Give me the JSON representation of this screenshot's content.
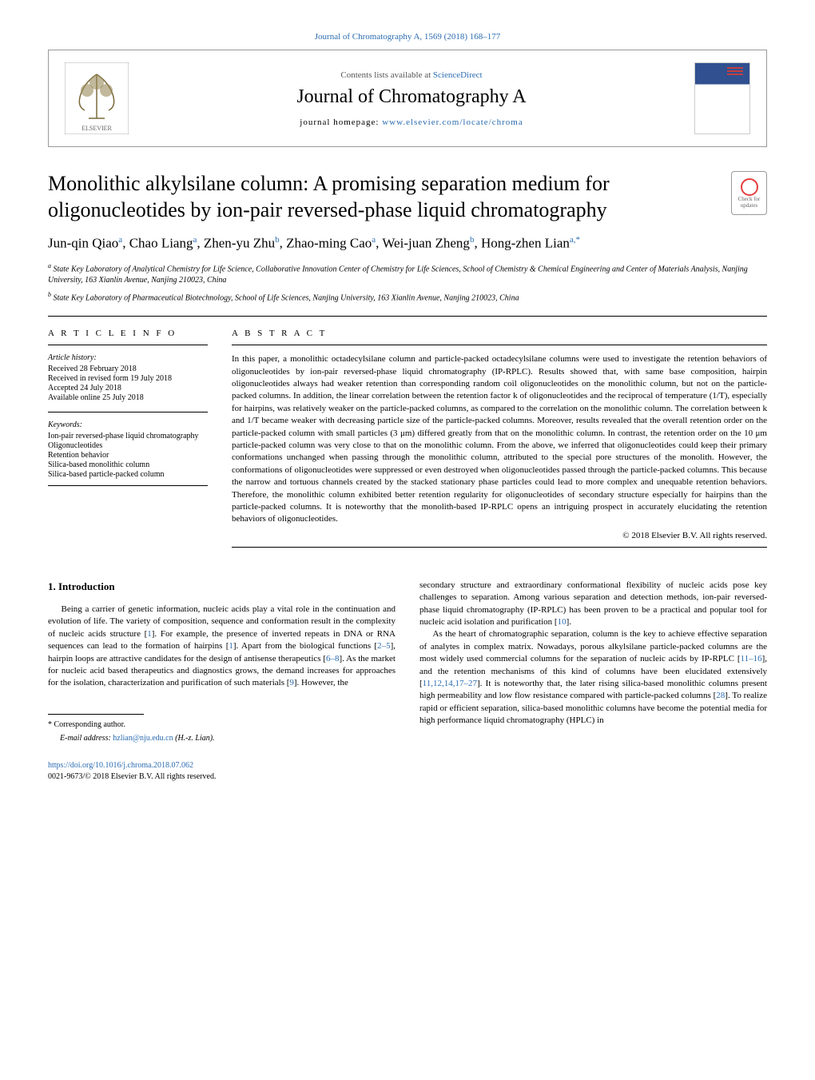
{
  "journal_ref": "Journal of Chromatography A, 1569 (2018) 168–177",
  "header": {
    "contents_prefix": "Contents lists available at ",
    "contents_link": "ScienceDirect",
    "journal_name": "Journal of Chromatography A",
    "homepage_label": "journal homepage: ",
    "homepage_url": "www.elsevier.com/locate/chroma"
  },
  "title": "Monolithic alkylsilane column: A promising separation medium for oligonucleotides by ion-pair reversed-phase liquid chromatography",
  "crossmark_text": "Check for updates",
  "authors_html": "Jun-qin Qiao<sup>a</sup>, Chao Liang<sup>a</sup>, Zhen-yu Zhu<sup>b</sup>, Zhao-ming Cao<sup>a</sup>, Wei-juan Zheng<sup>b</sup>, Hong-zhen Lian<sup>a,*</sup>",
  "affiliations": [
    {
      "sup": "a",
      "text": "State Key Laboratory of Analytical Chemistry for Life Science, Collaborative Innovation Center of Chemistry for Life Sciences, School of Chemistry & Chemical Engineering and Center of Materials Analysis, Nanjing University, 163 Xianlin Avenue, Nanjing 210023, China"
    },
    {
      "sup": "b",
      "text": "State Key Laboratory of Pharmaceutical Biotechnology, School of Life Sciences, Nanjing University, 163 Xianlin Avenue, Nanjing 210023, China"
    }
  ],
  "article_info": {
    "heading": "A R T I C L E   I N F O",
    "history_label": "Article history:",
    "history": [
      "Received 28 February 2018",
      "Received in revised form 19 July 2018",
      "Accepted 24 July 2018",
      "Available online 25 July 2018"
    ],
    "keywords_label": "Keywords:",
    "keywords": [
      "Ion-pair reversed-phase liquid chromatography",
      "Oligonucleotides",
      "Retention behavior",
      "Silica-based monolithic column",
      "Silica-based particle-packed column"
    ]
  },
  "abstract": {
    "heading": "A B S T R A C T",
    "text": "In this paper, a monolithic octadecylsilane column and particle-packed octadecylsilane columns were used to investigate the retention behaviors of oligonucleotides by ion-pair reversed-phase liquid chromatography (IP-RPLC). Results showed that, with same base composition, hairpin oligonucleotides always had weaker retention than corresponding random coil oligonucleotides on the monolithic column, but not on the particle-packed columns. In addition, the linear correlation between the retention factor k of oligonucleotides and the reciprocal of temperature (1/T), especially for hairpins, was relatively weaker on the particle-packed columns, as compared to the correlation on the monolithic column. The correlation between k and 1/T became weaker with decreasing particle size of the particle-packed columns. Moreover, results revealed that the overall retention order on the particle-packed column with small particles (3 μm) differed greatly from that on the monolithic column. In contrast, the retention order on the 10 μm particle-packed column was very close to that on the monolithic column. From the above, we inferred that oligonucleotides could keep their primary conformations unchanged when passing through the monolithic column, attributed to the special pore structures of the monolith. However, the conformations of oligonucleotides were suppressed or even destroyed when oligonucleotides passed through the particle-packed columns. This because the narrow and tortuous channels created by the stacked stationary phase particles could lead to more complex and unequable retention behaviors. Therefore, the monolithic column exhibited better retention regularity for oligonucleotides of secondary structure especially for hairpins than the particle-packed columns. It is noteworthy that the monolith-based IP-RPLC opens an intriguing prospect in accurately elucidating the retention behaviors of oligonucleotides.",
    "copyright": "© 2018 Elsevier B.V. All rights reserved."
  },
  "intro": {
    "heading": "1. Introduction",
    "col1_p1": "Being a carrier of genetic information, nucleic acids play a vital role in the continuation and evolution of life. The variety of composition, sequence and conformation result in the complexity of nucleic acids structure [1]. For example, the presence of inverted repeats in DNA or RNA sequences can lead to the formation of hairpins [1]. Apart from the biological functions [2–5], hairpin loops are attractive candidates for the design of antisense therapeutics [6–8]. As the market for nucleic acid based therapeutics and diagnostics grows, the demand increases for approaches for the isolation, characterization and purification of such materials [9]. However, the",
    "col2_p1": "secondary structure and extraordinary conformational flexibility of nucleic acids pose key challenges to separation. Among various separation and detection methods, ion-pair reversed-phase liquid chromatography (IP-RPLC) has been proven to be a practical and popular tool for nucleic acid isolation and purification [10].",
    "col2_p2": "As the heart of chromatographic separation, column is the key to achieve effective separation of analytes in complex matrix. Nowadays, porous alkylsilane particle-packed columns are the most widely used commercial columns for the separation of nucleic acids by IP-RPLC [11–16], and the retention mechanisms of this kind of columns have been elucidated extensively [11,12,14,17–27]. It is noteworthy that, the later rising silica-based monolithic columns present high permeability and low flow resistance compared with particle-packed columns [28]. To realize rapid or efficient separation, silica-based monolithic columns have become the potential media for high performance liquid chromatography (HPLC) in"
  },
  "footer": {
    "corresponding": "Corresponding author.",
    "email_label": "E-mail address: ",
    "email": "hzlian@nju.edu.cn",
    "email_attrib": " (H.-z. Lian).",
    "doi": "https://doi.org/10.1016/j.chroma.2018.07.062",
    "issn_line": "0021-9673/© 2018 Elsevier B.V. All rights reserved."
  },
  "ref_citations": {
    "r1": "1",
    "r2_5": "2–5",
    "r6_8": "6–8",
    "r9": "9",
    "r10": "10",
    "r11_16": "11–16",
    "r11": "11",
    "r12": "12",
    "r14": "14",
    "r17_27": "17–27",
    "r28": "28"
  }
}
